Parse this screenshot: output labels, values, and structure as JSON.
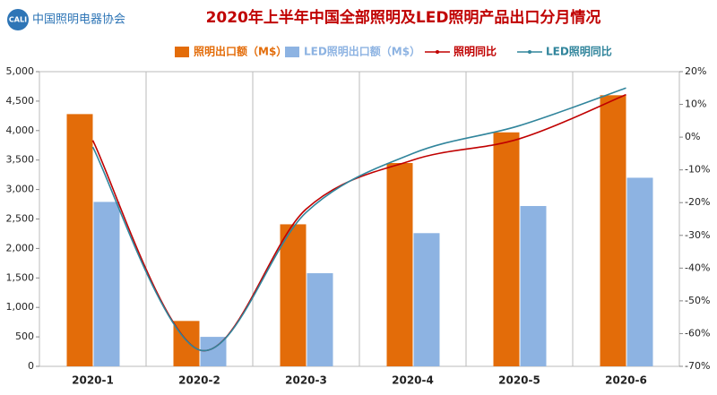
{
  "logo": {
    "mark": "CALI",
    "text": "中国照明电器协会"
  },
  "chart_data": {
    "type": "bar-line",
    "title": "2020年上半年中国全部照明及LED照明产品出口分月情况",
    "categories": [
      "2020-1",
      "2020-2",
      "2020-3",
      "2020-4",
      "2020-5",
      "2020-6"
    ],
    "series": [
      {
        "name": "照明出口额（M$）",
        "color": "#e36c09",
        "type": "bar",
        "values": [
          4280,
          770,
          2410,
          3450,
          3970,
          4600
        ]
      },
      {
        "name": "LED照明出口额（M$）",
        "color": "#8db3e2",
        "type": "bar",
        "values": [
          2790,
          500,
          1580,
          2260,
          2720,
          3200
        ]
      },
      {
        "name": "照明同比",
        "color": "#c00000",
        "type": "line",
        "axis": "y2",
        "values": [
          -1,
          -65,
          -22,
          -7,
          -0.5,
          13
        ]
      },
      {
        "name": "LED照明同比",
        "color": "#31859c",
        "type": "line",
        "axis": "y2",
        "values": [
          -3,
          -65,
          -23,
          -5,
          3.5,
          15
        ]
      }
    ],
    "ylim": [
      0,
      5000
    ],
    "yticks": [
      0,
      500,
      {
        "value": 1000,
        "label": "1,000"
      },
      {
        "value": 1500,
        "label": "1,500"
      },
      {
        "value": 2000,
        "label": "2,000"
      },
      {
        "value": 2500,
        "label": "2,500"
      },
      {
        "value": 3000,
        "label": "3,000"
      },
      {
        "value": 3500,
        "label": "3,500"
      },
      {
        "value": 4000,
        "label": "4,000"
      },
      {
        "value": 4500,
        "label": "4,500"
      },
      {
        "value": 5000,
        "label": "5,000"
      }
    ],
    "y2lim": [
      -70,
      20
    ],
    "y2ticks": [
      {
        "value": -70,
        "label": "-70%"
      },
      {
        "value": -60,
        "label": "-60%"
      },
      {
        "value": -50,
        "label": "-50%"
      },
      {
        "value": -40,
        "label": "-40%"
      },
      {
        "value": -30,
        "label": "-30%"
      },
      {
        "value": -20,
        "label": "-20%"
      },
      {
        "value": -10,
        "label": "-10%"
      },
      {
        "value": 0,
        "label": "0%"
      },
      {
        "value": 10,
        "label": "10%"
      },
      {
        "value": 20,
        "label": "20%"
      }
    ],
    "legend": "top"
  }
}
